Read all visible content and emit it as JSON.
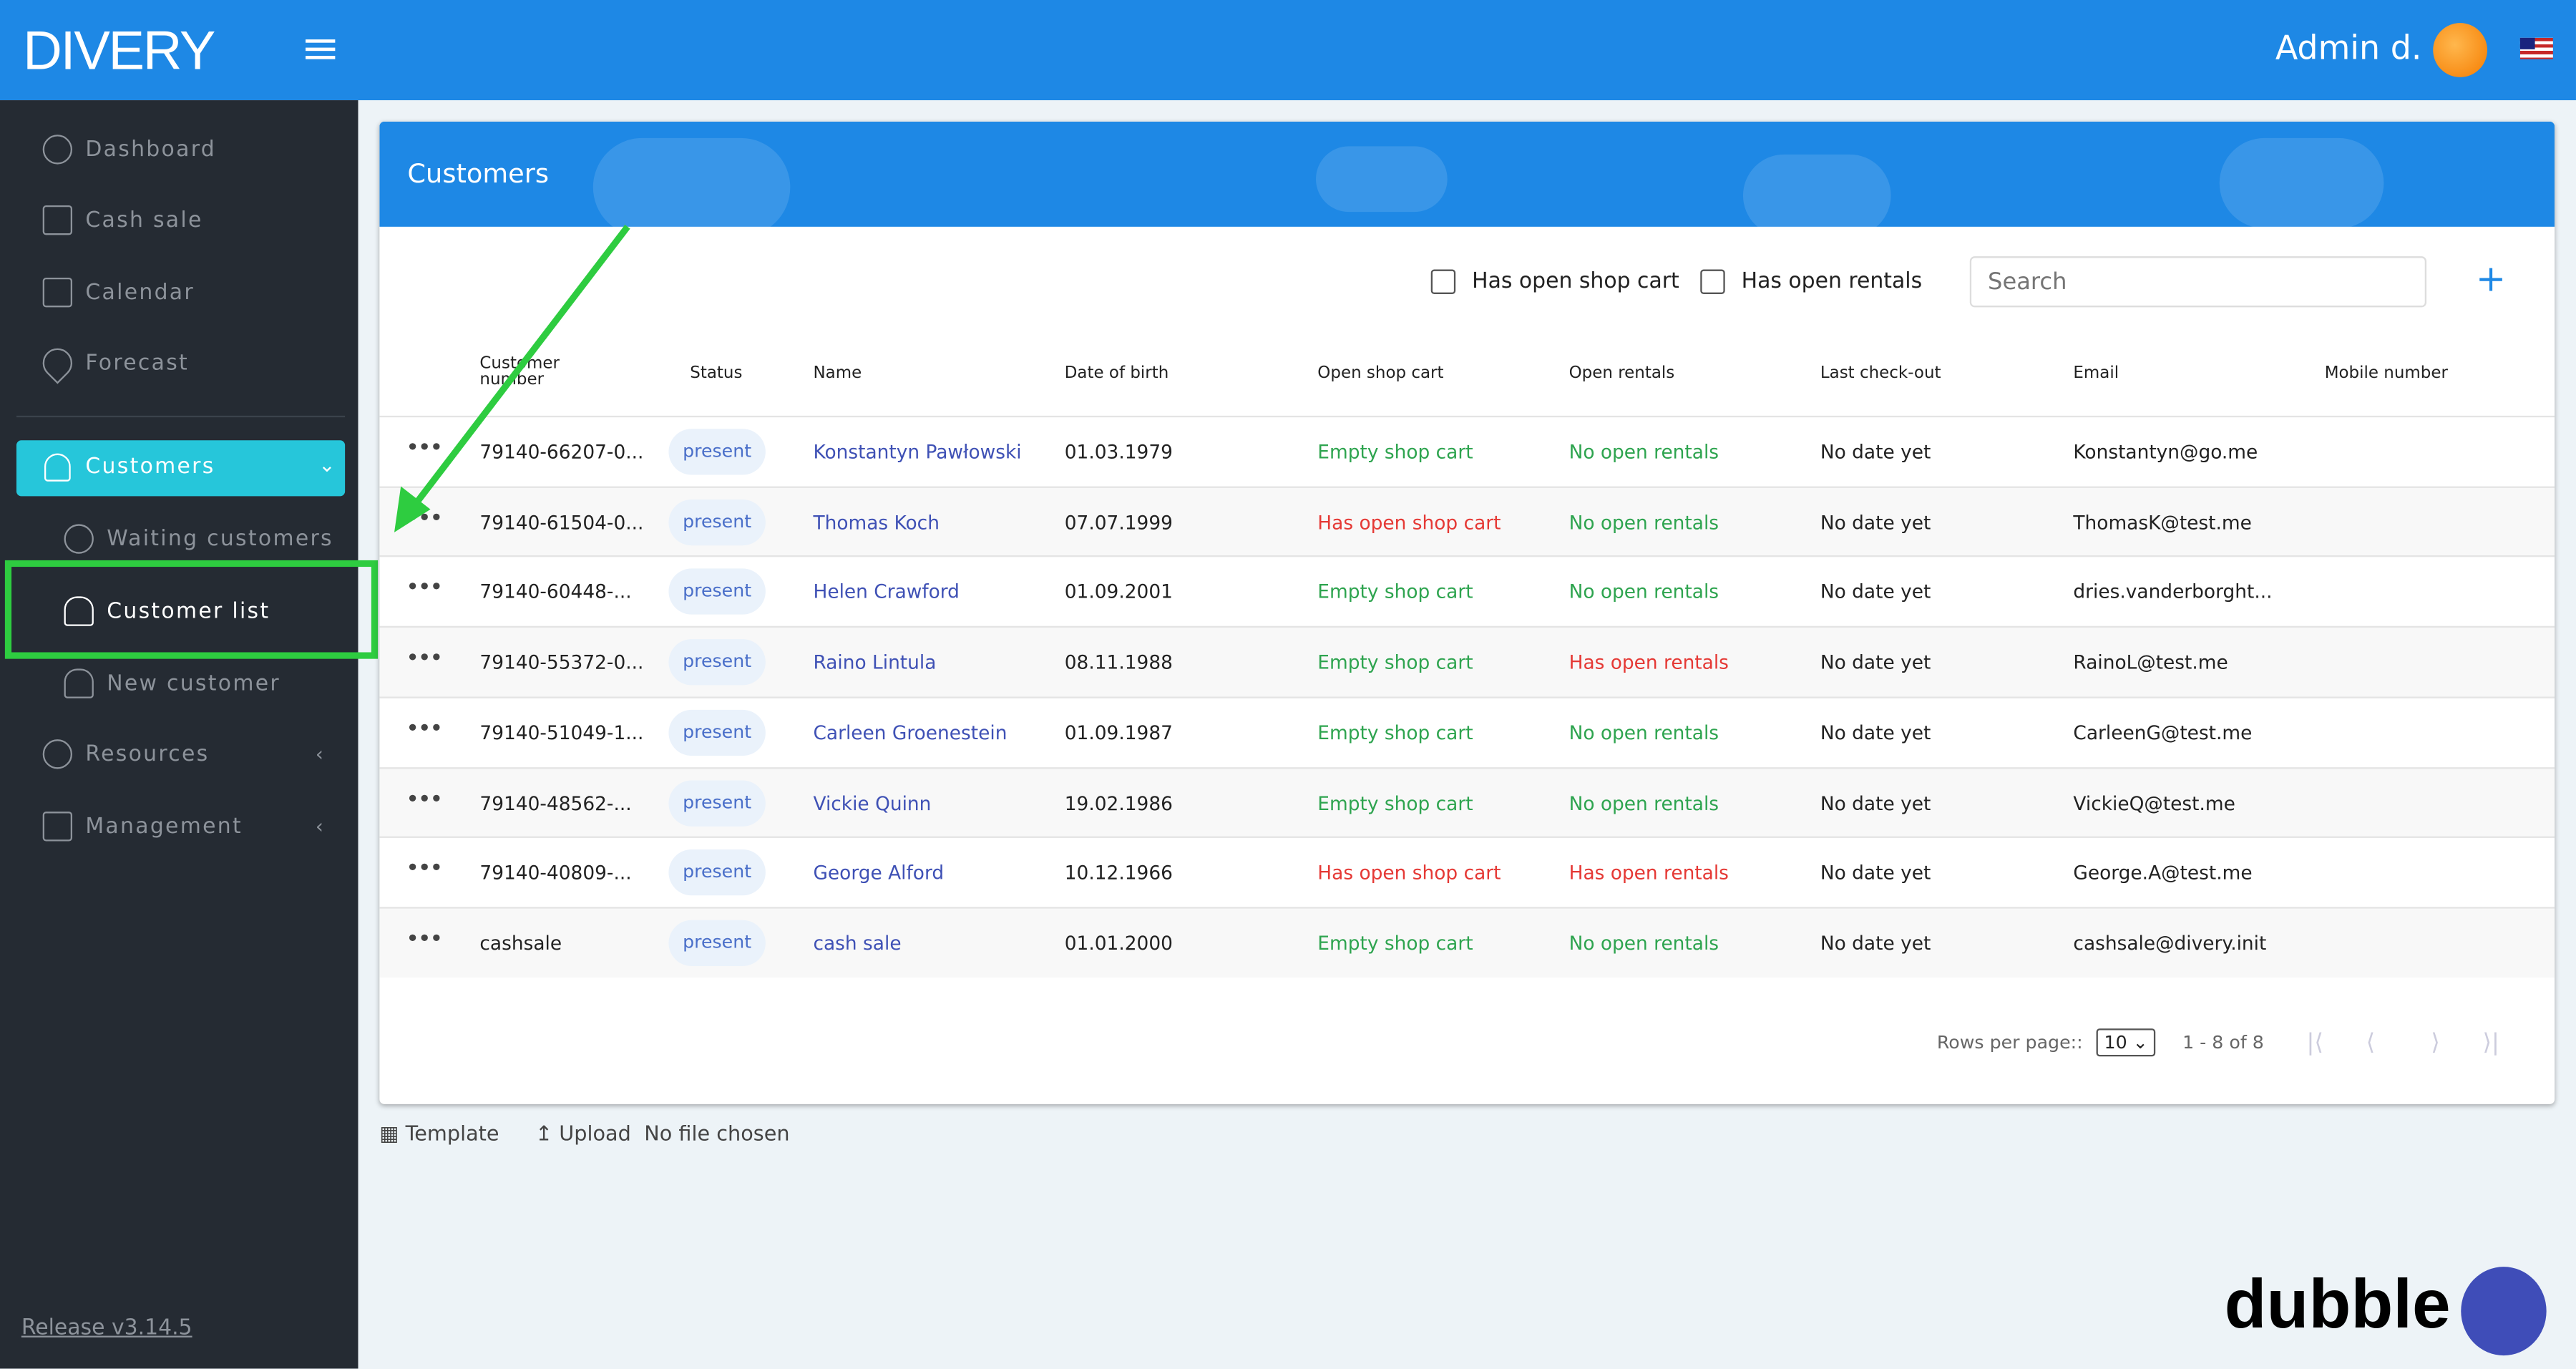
{
  "app": {
    "logo": "DIVERY",
    "user": "Admin d.",
    "flag_icon": "us-flag-icon",
    "accent": "#1e88e5",
    "active_color": "#26c6da"
  },
  "sidebar": {
    "items": [
      {
        "label": "Dashboard",
        "icon": "speedometer-icon"
      },
      {
        "label": "Cash sale",
        "icon": "cart-icon"
      },
      {
        "label": "Calendar",
        "icon": "calendar-icon"
      },
      {
        "label": "Forecast",
        "icon": "location-pin-icon"
      },
      {
        "label": "Customers",
        "icon": "user-icon",
        "active": true
      },
      {
        "label": "Waiting customers",
        "icon": "clock-icon"
      },
      {
        "label": "Customer list",
        "icon": "user-icon",
        "highlighted": true
      },
      {
        "label": "New customer",
        "icon": "user-add-icon"
      },
      {
        "label": "Resources",
        "icon": "resources-icon"
      },
      {
        "label": "Management",
        "icon": "building-icon"
      }
    ],
    "release": "Release v3.14.5"
  },
  "page": {
    "title": "Customers",
    "filters": {
      "shop_cart": "Has open shop cart",
      "rentals": "Has open rentals",
      "search_placeholder": "Search"
    },
    "columns": [
      "Customer number",
      "Status",
      "Name",
      "Date of birth",
      "Open shop cart",
      "Open rentals",
      "Last check-out",
      "Email",
      "Mobile number"
    ],
    "rows": [
      [
        "79140-66207-0...",
        "present",
        "Konstantyn Pawłowski",
        "01.03.1979",
        "Empty shop cart",
        "No open rentals",
        "No date yet",
        "Konstantyn@go.me",
        ""
      ],
      [
        "79140-61504-0...",
        "present",
        "Thomas Koch",
        "07.07.1999",
        "Has open shop cart",
        "No open rentals",
        "No date yet",
        "ThomasK@test.me",
        ""
      ],
      [
        "79140-60448-...",
        "present",
        "Helen Crawford",
        "01.09.2001",
        "Empty shop cart",
        "No open rentals",
        "No date yet",
        "dries.vanderborght...",
        ""
      ],
      [
        "79140-55372-0...",
        "present",
        "Raino Lintula",
        "08.11.1988",
        "Empty shop cart",
        "Has open rentals",
        "No date yet",
        "RainoL@test.me",
        ""
      ],
      [
        "79140-51049-1...",
        "present",
        "Carleen Groenestein",
        "01.09.1987",
        "Empty shop cart",
        "No open rentals",
        "No date yet",
        "CarleenG@test.me",
        ""
      ],
      [
        "79140-48562-...",
        "present",
        "Vickie Quinn",
        "19.02.1986",
        "Empty shop cart",
        "No open rentals",
        "No date yet",
        "VickieQ@test.me",
        ""
      ],
      [
        "79140-40809-...",
        "present",
        "George Alford",
        "10.12.1966",
        "Has open shop cart",
        "Has open rentals",
        "No date yet",
        "George.A@test.me",
        ""
      ],
      [
        "cashsale",
        "present",
        "cash sale",
        "01.01.2000",
        "Empty shop cart",
        "No open rentals",
        "No date yet",
        "cashsale@divery.init",
        ""
      ]
    ],
    "pager": {
      "rows_label": "Rows per page::",
      "rows_value": "10",
      "range": "1 - 8 of 8"
    },
    "bottom": {
      "template": "Template",
      "upload": "Upload",
      "file": "No file chosen"
    }
  },
  "watermark": "dubble"
}
